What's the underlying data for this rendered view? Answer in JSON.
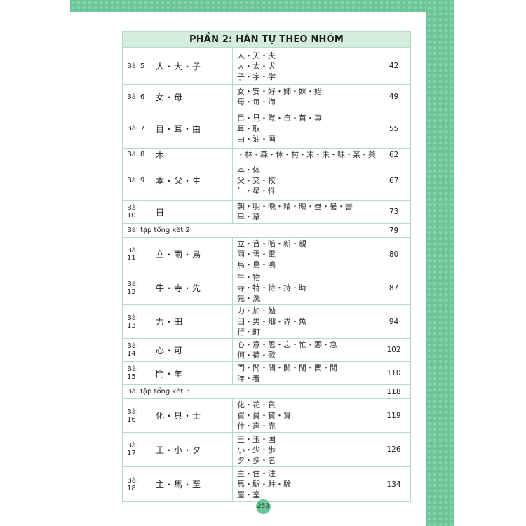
{
  "section_title": "PHẦN 2: HÁN TỰ THEO NHÓM",
  "rows": [
    {
      "lesson": "Bài 5",
      "main": "人・大・子",
      "kanji": [
        "人・天・夫",
        "大・太・犬",
        "子・字・学"
      ],
      "page": "42"
    },
    {
      "lesson": "Bài 6",
      "main": "女・母",
      "kanji": [
        "女・安・好・姉・妹・始",
        "母・毎・海"
      ],
      "page": "49"
    },
    {
      "lesson": "Bài 7",
      "main": "目・耳・由",
      "kanji": [
        "目・見・覚・自・首・真",
        "耳・取",
        "由・油・画"
      ],
      "page": "55"
    },
    {
      "lesson": "Bài 8",
      "main": "木",
      "kanji": [
        "・林・森・休・村・末・未・味・楽・薬"
      ],
      "page": "62"
    },
    {
      "lesson": "Bài 9",
      "main": "本・父・生",
      "kanji": [
        "本・体",
        "父・交・校",
        "生・星・性"
      ],
      "page": "67"
    },
    {
      "lesson": "Bài 10",
      "main": "日",
      "kanji": [
        "朝・明・晩・晴・映・昼・暑・書",
        "早・草"
      ],
      "page": "73"
    },
    {
      "summary": "Bài tập tổng kết 2",
      "page": "79"
    },
    {
      "lesson": "Bài 11",
      "main": "立・雨・鳥",
      "kanji": [
        "立・音・暗・新・親",
        "雨・雪・電",
        "烏・島・鳴"
      ],
      "page": "80"
    },
    {
      "lesson": "Bài 12",
      "main": "牛・寺・先",
      "kanji": [
        "牛・物",
        "寺・特・待・持・時",
        "先・洗"
      ],
      "page": "87"
    },
    {
      "lesson": "Bài 13",
      "main": "力・田",
      "kanji": [
        "力・加・勉",
        "田・男・畑・界・魚",
        "行・町"
      ],
      "page": "94"
    },
    {
      "lesson": "Bài 14",
      "main": "心・可",
      "kanji": [
        "心・意・思・忘・忙・悪・急",
        "何・荷・歌"
      ],
      "page": "102"
    },
    {
      "lesson": "Bài 15",
      "main": "門・羊",
      "kanji": [
        "門・問・間・開・閉・関・聞",
        "洋・着"
      ],
      "page": "110"
    },
    {
      "summary": "Bài tập tổng kết 3",
      "page": "118"
    },
    {
      "lesson": "Bài 16",
      "main": "化・貝・士",
      "kanji": [
        "化・花・貨",
        "買・員・貸・質",
        "仕・声・売"
      ],
      "page": "119"
    },
    {
      "lesson": "Bài 17",
      "main": "王・小・夕",
      "kanji": [
        "王・玉・国",
        "小・少・歩",
        "夕・多・名"
      ],
      "page": "126"
    },
    {
      "lesson": "Bài 18",
      "main": "主・馬・至",
      "kanji": [
        "主・住・注",
        "馬・駅・駐・験",
        "屋・室"
      ],
      "page": "134"
    }
  ],
  "page_number": "253",
  "colors": {
    "accent": "#6cc597",
    "header_bg": "#d3ecdb",
    "border": "#b5dcc9"
  }
}
